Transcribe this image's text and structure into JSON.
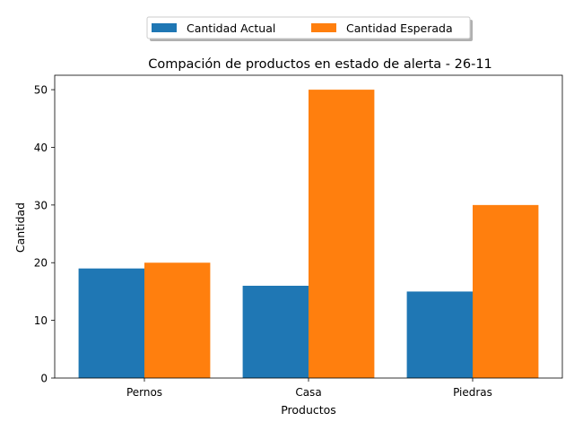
{
  "chart_data": {
    "type": "bar",
    "title": "Compación de productos en estado de alerta - 26-11",
    "xlabel": "Productos",
    "ylabel": "Cantidad",
    "categories": [
      "Pernos",
      "Casa",
      "Piedras"
    ],
    "series": [
      {
        "name": "Cantidad Actual",
        "values": [
          19,
          16,
          15
        ],
        "color": "#1f77b4"
      },
      {
        "name": "Cantidad Esperada",
        "values": [
          20,
          50,
          30
        ],
        "color": "#ff7f0e"
      }
    ],
    "ylim": [
      0,
      52.5
    ],
    "yticks": [
      "0",
      "10",
      "20",
      "30",
      "40",
      "50"
    ],
    "legend_position": "top-center",
    "grid": false
  }
}
